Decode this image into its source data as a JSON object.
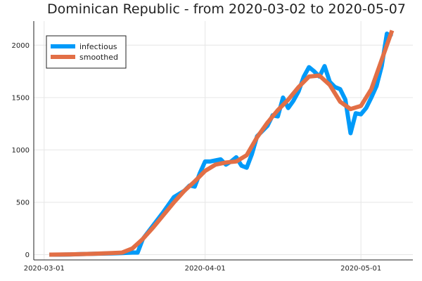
{
  "chart_data": {
    "type": "line",
    "title": "Dominican Republic - from 2020-03-02 to 2020-05-07",
    "xlabel": "",
    "ylabel": "",
    "x_start": "2020-03-02",
    "x_end": "2020-05-07",
    "xlim": [
      "2020-02-28",
      "2020-05-11"
    ],
    "ylim": [
      -50,
      2230
    ],
    "x_ticks": [
      "2020-03-01",
      "2020-04-01",
      "2020-05-01"
    ],
    "y_ticks": [
      0,
      500,
      1000,
      1500,
      2000
    ],
    "grid": true,
    "legend": {
      "position": "top-left",
      "entries": [
        "infectious",
        "smoothed"
      ]
    },
    "colors": {
      "infectious": "#009af9",
      "smoothed": "#e26f46"
    },
    "series": [
      {
        "name": "infectious",
        "dates": [
          "2020-03-02",
          "2020-03-04",
          "2020-03-06",
          "2020-03-08",
          "2020-03-10",
          "2020-03-12",
          "2020-03-14",
          "2020-03-16",
          "2020-03-18",
          "2020-03-19",
          "2020-03-20",
          "2020-03-22",
          "2020-03-24",
          "2020-03-26",
          "2020-03-28",
          "2020-03-29",
          "2020-03-30",
          "2020-03-31",
          "2020-04-01",
          "2020-04-02",
          "2020-04-04",
          "2020-04-05",
          "2020-04-06",
          "2020-04-07",
          "2020-04-08",
          "2020-04-09",
          "2020-04-10",
          "2020-04-11",
          "2020-04-12",
          "2020-04-13",
          "2020-04-14",
          "2020-04-15",
          "2020-04-16",
          "2020-04-17",
          "2020-04-18",
          "2020-04-19",
          "2020-04-20",
          "2020-04-21",
          "2020-04-22",
          "2020-04-23",
          "2020-04-24",
          "2020-04-25",
          "2020-04-26",
          "2020-04-27",
          "2020-04-28",
          "2020-04-29",
          "2020-04-30",
          "2020-05-01",
          "2020-05-02",
          "2020-05-03",
          "2020-05-04",
          "2020-05-05",
          "2020-05-06",
          "2020-05-07"
        ],
        "values": [
          0,
          0,
          2,
          5,
          8,
          10,
          12,
          15,
          20,
          20,
          150,
          280,
          410,
          550,
          610,
          660,
          650,
          780,
          890,
          890,
          910,
          860,
          890,
          930,
          850,
          830,
          960,
          1130,
          1180,
          1230,
          1330,
          1320,
          1500,
          1400,
          1470,
          1560,
          1700,
          1790,
          1750,
          1700,
          1800,
          1650,
          1600,
          1580,
          1480,
          1160,
          1350,
          1340,
          1400,
          1500,
          1610,
          1800,
          2110,
          2080
        ]
      },
      {
        "name": "smoothed",
        "dates": [
          "2020-03-02",
          "2020-03-06",
          "2020-03-10",
          "2020-03-14",
          "2020-03-16",
          "2020-03-18",
          "2020-03-20",
          "2020-03-22",
          "2020-03-24",
          "2020-03-26",
          "2020-03-28",
          "2020-03-30",
          "2020-04-01",
          "2020-04-03",
          "2020-04-05",
          "2020-04-07",
          "2020-04-09",
          "2020-04-11",
          "2020-04-13",
          "2020-04-15",
          "2020-04-17",
          "2020-04-19",
          "2020-04-21",
          "2020-04-23",
          "2020-04-25",
          "2020-04-27",
          "2020-04-29",
          "2020-05-01",
          "2020-05-03",
          "2020-05-05",
          "2020-05-07"
        ],
        "values": [
          0,
          3,
          8,
          15,
          20,
          60,
          150,
          260,
          380,
          500,
          610,
          700,
          800,
          860,
          880,
          890,
          950,
          1120,
          1260,
          1380,
          1480,
          1600,
          1700,
          1710,
          1620,
          1460,
          1390,
          1420,
          1580,
          1860,
          2140
        ]
      }
    ]
  }
}
